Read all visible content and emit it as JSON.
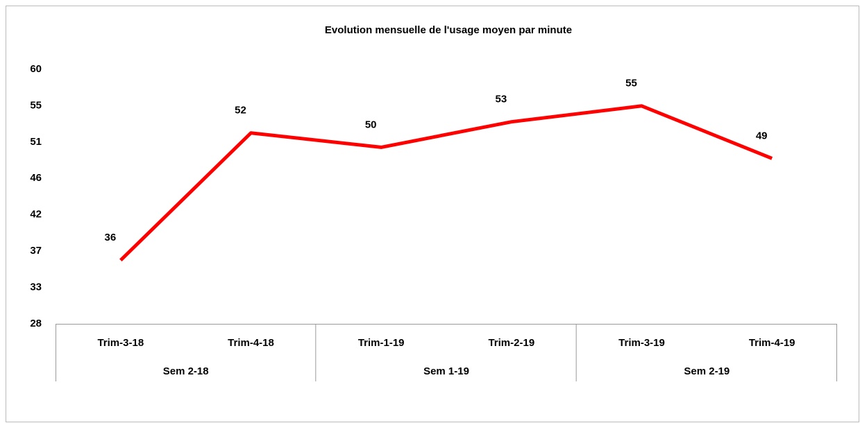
{
  "chart_data": {
    "type": "line",
    "title": "Evolution mensuelle de l'usage moyen par minute",
    "categories": [
      "Trim-3-18",
      "Trim-4-18",
      "Trim-1-19",
      "Trim-2-19",
      "Trim-3-19",
      "Trim-4-19"
    ],
    "groups": [
      {
        "name": "Sem 2-18",
        "size": 2
      },
      {
        "name": "Sem 1-19",
        "size": 2
      },
      {
        "name": "Sem 2-19",
        "size": 2
      }
    ],
    "values": [
      36,
      52,
      50.2,
      53.4,
      55.4,
      48.8
    ],
    "value_labels": [
      "36",
      "52",
      "50",
      "53",
      "55",
      "49"
    ],
    "color": "#ff0000",
    "ylim": [
      28,
      60
    ],
    "yticks": [
      28,
      {
        "value": 32.57,
        "label": "33"
      },
      {
        "value": 37.14,
        "label": "37"
      },
      {
        "value": 41.71,
        "label": "42"
      },
      {
        "value": 46.29,
        "label": "46"
      },
      {
        "value": 50.86,
        "label": "51"
      },
      {
        "value": 55.43,
        "label": "55"
      },
      60
    ],
    "grid": false
  }
}
